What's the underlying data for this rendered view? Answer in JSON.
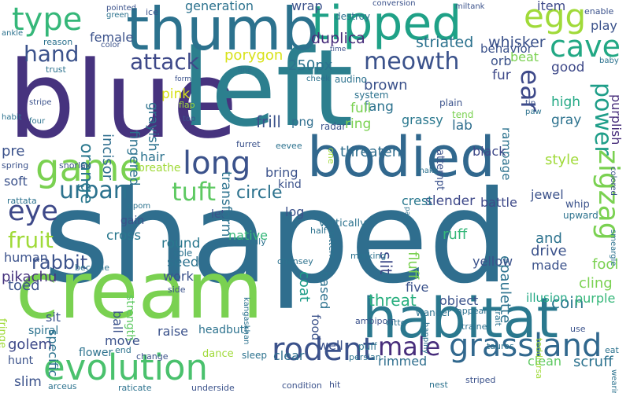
{
  "canvas": {
    "background": "#ffffff"
  },
  "words": [
    {
      "text": "shaped",
      "color": "#2f6e8e"
    },
    {
      "text": "blue",
      "color": "#46337e"
    },
    {
      "text": "left",
      "color": "#2c7f8e"
    },
    {
      "text": "cream",
      "color": "#7ad151"
    },
    {
      "text": "thumb",
      "color": "#2c728e"
    },
    {
      "text": "bodied",
      "color": "#31688e"
    },
    {
      "text": "tipped",
      "color": "#1fa187"
    },
    {
      "text": "habitat",
      "color": "#2a788e"
    },
    {
      "text": "evolution",
      "color": "#4ac16d"
    },
    {
      "text": "game",
      "color": "#7ad151"
    },
    {
      "text": "egg",
      "color": "#a0da39"
    },
    {
      "text": "grassland",
      "color": "#31688e"
    },
    {
      "text": "type",
      "color": "#35b779"
    },
    {
      "text": "long",
      "color": "#3b528b"
    },
    {
      "text": "rodent",
      "color": "#3b528b"
    },
    {
      "text": "cave",
      "color": "#22a884"
    },
    {
      "text": "zigzag",
      "color": "#7ad151"
    },
    {
      "text": "tuft",
      "color": "#5ec962"
    },
    {
      "text": "eye",
      "color": "#3e4989"
    },
    {
      "text": "urban",
      "color": "#2c728e"
    },
    {
      "text": "power",
      "color": "#1f9e89"
    },
    {
      "text": "ear",
      "color": "#3e4989"
    },
    {
      "text": "meowth",
      "color": "#3b528b"
    },
    {
      "text": "male",
      "color": "#472d7b"
    },
    {
      "text": "hand",
      "color": "#3b528b"
    },
    {
      "text": "attack",
      "color": "#3e4989"
    },
    {
      "text": "fruit",
      "color": "#a0da39"
    },
    {
      "text": "rabbit",
      "color": "#3b528b"
    },
    {
      "text": "orange",
      "color": "#2a788e"
    },
    {
      "text": "circle",
      "color": "#2c728e"
    },
    {
      "text": "porygon",
      "color": "#d8e219"
    },
    {
      "text": "250px",
      "color": "#2c728e"
    },
    {
      "text": "threat",
      "color": "#29af7f"
    },
    {
      "text": "duplica",
      "color": "#472d7b"
    },
    {
      "text": "striated",
      "color": "#2c728e"
    },
    {
      "text": "whisker",
      "color": "#3b528b"
    },
    {
      "text": "epaulette",
      "color": "#2c728e"
    },
    {
      "text": "coin",
      "color": "#2a788e"
    },
    {
      "text": "slit",
      "color": "#3e4989"
    },
    {
      "text": "frill",
      "color": "#3b528b"
    },
    {
      "text": "incisor",
      "color": "#2f6e8e"
    },
    {
      "text": "fingered",
      "color": "#2c728e"
    },
    {
      "text": "grayish",
      "color": "#2c728e"
    },
    {
      "text": "brown",
      "color": "#3b528b"
    },
    {
      "text": "fang",
      "color": "#2c728e"
    },
    {
      "text": "full",
      "color": "#7ad151"
    },
    {
      "text": "lab",
      "color": "#2f6e8e"
    },
    {
      "text": "ring",
      "color": "#7ad151"
    },
    {
      "text": "grassy",
      "color": "#2a788e"
    },
    {
      "text": "threaten",
      "color": "#2f6e8e"
    },
    {
      "text": "rampage",
      "color": "#2c728e"
    },
    {
      "text": "high",
      "color": "#22a884"
    },
    {
      "text": "gray",
      "color": "#2c728e"
    },
    {
      "text": "purplish",
      "color": "#472d7b"
    },
    {
      "text": "fur",
      "color": "#3e4989"
    },
    {
      "text": "good",
      "color": "#3e4989"
    },
    {
      "text": "orb",
      "color": "#3b528b"
    },
    {
      "text": "item",
      "color": "#3e4989"
    },
    {
      "text": "play",
      "color": "#3b528b"
    },
    {
      "text": "behavior",
      "color": "#3b528b"
    },
    {
      "text": "beat",
      "color": "#7ad151"
    },
    {
      "text": "style",
      "color": "#a0da39"
    },
    {
      "text": "jewel",
      "color": "#3b528b"
    },
    {
      "text": "black",
      "color": "#3e4989"
    },
    {
      "text": "slender",
      "color": "#3e4989"
    },
    {
      "text": "battle",
      "color": "#3e4989"
    },
    {
      "text": "crest",
      "color": "#2a788e"
    },
    {
      "text": "fluff",
      "color": "#7ad151"
    },
    {
      "text": "ruff",
      "color": "#35b779"
    },
    {
      "text": "and",
      "color": "#2c728e"
    },
    {
      "text": "drive",
      "color": "#3b528b"
    },
    {
      "text": "fool",
      "color": "#7ad151"
    },
    {
      "text": "made",
      "color": "#3b528b"
    },
    {
      "text": "cling",
      "color": "#7ad151"
    },
    {
      "text": "purple",
      "color": "#35b779"
    },
    {
      "text": "yellow",
      "color": "#3b528b"
    },
    {
      "text": "five",
      "color": "#3b528b"
    },
    {
      "text": "object",
      "color": "#3b528b"
    },
    {
      "text": "illusion",
      "color": "#22a884"
    },
    {
      "text": "scruff",
      "color": "#2c728e"
    },
    {
      "text": "clean",
      "color": "#5ec962"
    },
    {
      "text": "rimmed",
      "color": "#2f6e8e"
    },
    {
      "text": "clear",
      "color": "#2f6e8e"
    },
    {
      "text": "food",
      "color": "#3b528b"
    },
    {
      "text": "coat",
      "color": "#1f9e89"
    },
    {
      "text": "based",
      "color": "#2c728e"
    },
    {
      "text": "log",
      "color": "#3b528b"
    },
    {
      "text": "native",
      "color": "#35b779"
    },
    {
      "text": "kind",
      "color": "#3b528b"
    },
    {
      "text": "bring",
      "color": "#3b528b"
    },
    {
      "text": "let",
      "color": "#3b528b"
    },
    {
      "text": "round",
      "color": "#2a788e"
    },
    {
      "text": "seed",
      "color": "#2c728e"
    },
    {
      "text": "work",
      "color": "#3b528b"
    },
    {
      "text": "raise",
      "color": "#3b528b"
    },
    {
      "text": "move",
      "color": "#3b528b"
    },
    {
      "text": "well",
      "color": "#3b528b"
    },
    {
      "text": "specific",
      "color": "#2c728e"
    },
    {
      "text": "ball",
      "color": "#3b528b"
    },
    {
      "text": "strength",
      "color": "#5ec962"
    },
    {
      "text": "cross",
      "color": "#2a788e"
    },
    {
      "text": "gain",
      "color": "#3b528b"
    },
    {
      "text": "sole",
      "color": "#2c728e"
    },
    {
      "text": "golem",
      "color": "#3e4989"
    },
    {
      "text": "hunt",
      "color": "#3b528b"
    },
    {
      "text": "slim",
      "color": "#3b528b"
    },
    {
      "text": "fringe",
      "color": "#a0da39"
    },
    {
      "text": "spiral",
      "color": "#2c728e"
    },
    {
      "text": "sit",
      "color": "#3b528b"
    },
    {
      "text": "toed",
      "color": "#3b528b"
    },
    {
      "text": "pikachu",
      "color": "#46337e"
    },
    {
      "text": "human",
      "color": "#3b528b"
    },
    {
      "text": "soft",
      "color": "#3b528b"
    },
    {
      "text": "hair",
      "color": "#2c728e"
    },
    {
      "text": "breathe",
      "color": "#a0da39"
    },
    {
      "text": "pre",
      "color": "#3b528b"
    },
    {
      "text": "transform",
      "color": "#2c728e"
    },
    {
      "text": "png",
      "color": "#2f6e8e"
    },
    {
      "text": "pink",
      "color": "#d8e219"
    },
    {
      "text": "female",
      "color": "#3b528b"
    },
    {
      "text": "generation",
      "color": "#2c728e"
    },
    {
      "text": "wrap",
      "color": "#3b528b"
    },
    {
      "text": "headbutt",
      "color": "#2c728e"
    },
    {
      "text": "flower",
      "color": "#2c728e"
    },
    {
      "text": "dance",
      "color": "#a0da39"
    },
    {
      "text": "sleep",
      "color": "#2c728e"
    },
    {
      "text": "puff",
      "color": "#2c728e"
    },
    {
      "text": "wander",
      "color": "#2c728e"
    },
    {
      "text": "appear",
      "color": "#2c728e"
    },
    {
      "text": "trait",
      "color": "#2c728e"
    },
    {
      "text": "whip",
      "color": "#3b528b"
    },
    {
      "text": "upward",
      "color": "#2c728e"
    },
    {
      "text": "enable",
      "color": "#3b528b"
    },
    {
      "text": "plain",
      "color": "#3b528b"
    },
    {
      "text": "tend",
      "color": "#7ad151"
    },
    {
      "text": "attempt",
      "color": "#3b528b"
    },
    {
      "text": "system",
      "color": "#2c728e"
    },
    {
      "text": "destroy",
      "color": "#2c728e"
    },
    {
      "text": "radar",
      "color": "#3b528b"
    },
    {
      "text": "audino",
      "color": "#2c728e"
    },
    {
      "text": "vertically",
      "color": "#2c728e"
    },
    {
      "text": "furret",
      "color": "#3b528b"
    },
    {
      "text": "eevee",
      "color": "#2c728e"
    },
    {
      "text": "snorlax",
      "color": "#3b528b"
    },
    {
      "text": "rattata",
      "color": "#2c728e"
    },
    {
      "text": "aipom",
      "color": "#2c728e"
    },
    {
      "text": "silvally",
      "color": "#2c728e"
    },
    {
      "text": "chansey",
      "color": "#2c728e"
    },
    {
      "text": "pattern",
      "color": "#2c728e"
    },
    {
      "text": "marking",
      "color": "#2c728e"
    },
    {
      "text": "half",
      "color": "#2c728e"
    },
    {
      "text": "side",
      "color": "#3b528b"
    },
    {
      "text": "become",
      "color": "#2c728e"
    },
    {
      "text": "kangaskhan",
      "color": "#2c728e"
    },
    {
      "text": "ambipom",
      "color": "#3b528b"
    },
    {
      "text": "persian",
      "color": "#2c728e"
    },
    {
      "text": "ditto",
      "color": "#2c728e"
    },
    {
      "text": "happiny",
      "color": "#2c728e"
    },
    {
      "text": "trainer",
      "color": "#2c728e"
    },
    {
      "text": "tauros",
      "color": "#2c728e"
    },
    {
      "text": "teddiursa",
      "color": "#a0da39"
    },
    {
      "text": "condition",
      "color": "#3b528b"
    },
    {
      "text": "hit",
      "color": "#3b528b"
    },
    {
      "text": "nest",
      "color": "#2c728e"
    },
    {
      "text": "striped",
      "color": "#3b528b"
    },
    {
      "text": "raticate",
      "color": "#2c728e"
    },
    {
      "text": "underside",
      "color": "#3b528b"
    },
    {
      "text": "arceus",
      "color": "#2c728e"
    },
    {
      "text": "change",
      "color": "#3b528b"
    },
    {
      "text": "end",
      "color": "#2c728e"
    },
    {
      "text": "ankle",
      "color": "#2c728e"
    },
    {
      "text": "reason",
      "color": "#2c728e"
    },
    {
      "text": "color",
      "color": "#3b528b"
    },
    {
      "text": "trust",
      "color": "#2c728e"
    },
    {
      "text": "green",
      "color": "#2c728e"
    },
    {
      "text": "pointed",
      "color": "#3b528b"
    },
    {
      "text": "ice",
      "color": "#3b528b"
    },
    {
      "text": "conversion",
      "color": "#3b528b"
    },
    {
      "text": "miltank",
      "color": "#3b528b"
    },
    {
      "text": "time",
      "color": "#3b528b"
    },
    {
      "text": "line",
      "color": "#2c728e"
    },
    {
      "text": "form",
      "color": "#3b528b"
    },
    {
      "text": "cheek",
      "color": "#2c728e"
    },
    {
      "text": "flap",
      "color": "#a0da39"
    },
    {
      "text": "top",
      "color": "#3b528b"
    },
    {
      "text": "stripe",
      "color": "#3b528b"
    },
    {
      "text": "four",
      "color": "#2c728e"
    },
    {
      "text": "habit",
      "color": "#2c728e"
    },
    {
      "text": "spring",
      "color": "#3b528b"
    },
    {
      "text": "baby",
      "color": "#2c728e"
    },
    {
      "text": "tip",
      "color": "#3b528b"
    },
    {
      "text": "paw",
      "color": "#2c728e"
    },
    {
      "text": "colored",
      "color": "#3b528b"
    },
    {
      "text": "smeargle",
      "color": "#2c728e"
    },
    {
      "text": "make",
      "color": "#2c728e"
    },
    {
      "text": "pad",
      "color": "#2c728e"
    },
    {
      "text": "use",
      "color": "#3b528b"
    },
    {
      "text": "eat",
      "color": "#2c728e"
    },
    {
      "text": "wearing",
      "color": "#2c728e"
    },
    {
      "text": "one",
      "color": "#a0da39"
    }
  ]
}
